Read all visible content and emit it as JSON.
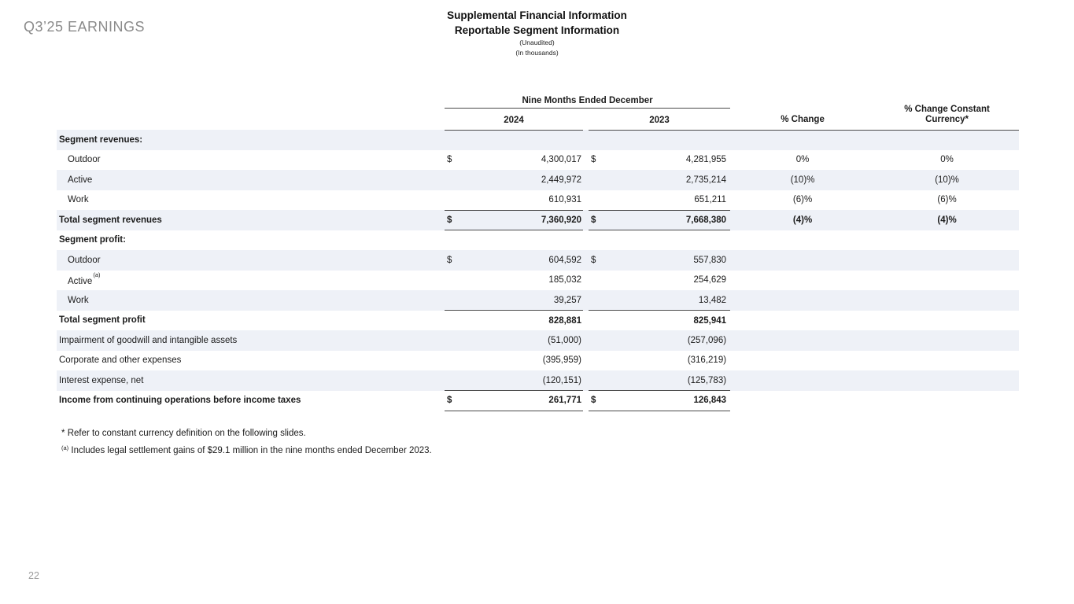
{
  "slide": {
    "logo": "Q3’25 EARNINGS",
    "page_number": "22"
  },
  "header": {
    "title_line1": "Supplemental Financial Information",
    "title_line2": "Reportable Segment Information",
    "subtitle1": "(Unaudited)",
    "subtitle2": "(In thousands)"
  },
  "table": {
    "group_header": "Nine Months Ended December",
    "col_2024": "2024",
    "col_2023": "2023",
    "col_change": "% Change",
    "col_change_cc": "% Change Constant Currency*",
    "rows": [
      {
        "label": "Segment revenues:",
        "bold": true,
        "shaded": true
      },
      {
        "label": "Outdoor",
        "indent": true,
        "d": "$",
        "v2024": "4,300,017",
        "d2": "$",
        "v2023": "4,281,955",
        "chg": "0%",
        "cc": "0%"
      },
      {
        "label": "Active",
        "indent": true,
        "v2024": "2,449,972",
        "v2023": "2,735,214",
        "chg": "(10)%",
        "cc": "(10)%",
        "shaded": true
      },
      {
        "label": "Work",
        "indent": true,
        "v2024": "610,931",
        "v2023": "651,211",
        "chg": "(6)%",
        "cc": "(6)%",
        "line": true
      },
      {
        "label": "Total segment revenues",
        "bold": true,
        "d": "$",
        "v2024": "7,360,920",
        "d2": "$",
        "v2023": "7,668,380",
        "chg": "(4)%",
        "cc": "(4)%",
        "shaded": true,
        "line": true
      },
      {
        "label": "Segment profit:",
        "bold": true
      },
      {
        "label": "Outdoor",
        "indent": true,
        "d": "$",
        "v2024": "604,592",
        "d2": "$",
        "v2023": "557,830",
        "shaded": true
      },
      {
        "label": "Active",
        "sup": "(a)",
        "indent": true,
        "v2024": "185,032",
        "v2023": "254,629"
      },
      {
        "label": "Work",
        "indent": true,
        "v2024": "39,257",
        "v2023": "13,482",
        "shaded": true,
        "line": true
      },
      {
        "label": "Total segment profit",
        "bold": true,
        "v2024": "828,881",
        "v2023": "825,941"
      },
      {
        "label": "Impairment of goodwill and intangible assets",
        "v2024": "(51,000)",
        "v2023": "(257,096)",
        "shaded": true
      },
      {
        "label": "Corporate and other expenses",
        "v2024": "(395,959)",
        "v2023": "(316,219)"
      },
      {
        "label": "Interest expense, net",
        "v2024": "(120,151)",
        "v2023": "(125,783)",
        "shaded": true,
        "line": true
      },
      {
        "label": "Income from continuing operations before income taxes",
        "bold": true,
        "d": "$",
        "v2024": "261,771",
        "d2": "$",
        "v2023": "126,843",
        "line": true
      }
    ]
  },
  "footnotes": [
    {
      "marker": "*",
      "text": "Refer to constant currency definition on the following slides."
    },
    {
      "marker": "(a)",
      "superscript": true,
      "text": "Includes legal settlement gains of $29.1 million in the nine months ended December 2023."
    }
  ]
}
